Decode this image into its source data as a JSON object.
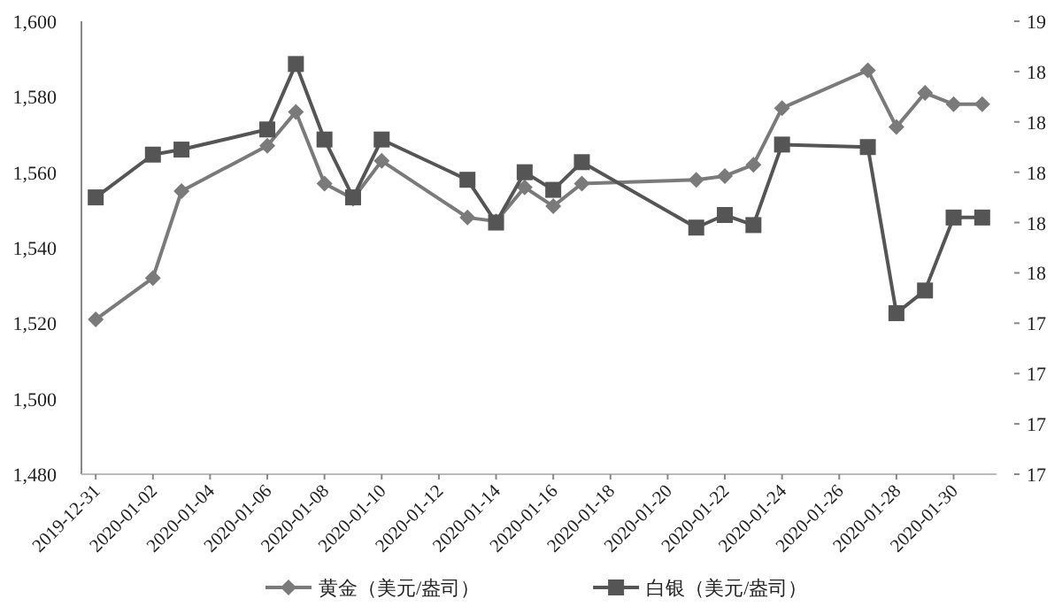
{
  "chart_data": {
    "type": "line",
    "legend": "bottom",
    "line_style": "solid",
    "x": [
      "2019-12-31",
      "2020-01-02",
      "2020-01-03",
      "2020-01-06",
      "2020-01-07",
      "2020-01-08",
      "2020-01-09",
      "2020-01-10",
      "2020-01-13",
      "2020-01-14",
      "2020-01-15",
      "2020-01-16",
      "2020-01-17",
      "2020-01-21",
      "2020-01-22",
      "2020-01-23",
      "2020-01-24",
      "2020-01-27",
      "2020-01-28",
      "2020-01-29",
      "2020-01-30",
      "2020-01-31"
    ],
    "xlim": [
      "2019-12-30T12:00",
      "2020-01-31T12:00"
    ],
    "xticks": [
      "2019-12-31",
      "2020-01-02",
      "2020-01-04",
      "2020-01-06",
      "2020-01-08",
      "2020-01-10",
      "2020-01-12",
      "2020-01-14",
      "2020-01-16",
      "2020-01-18",
      "2020-01-20",
      "2020-01-22",
      "2020-01-24",
      "2020-01-26",
      "2020-01-28",
      "2020-01-30"
    ],
    "ylim": [
      1480,
      1600
    ],
    "yticks": [
      {
        "value": 1480,
        "label": "1,480"
      },
      {
        "value": 1500,
        "label": "1,500"
      },
      {
        "value": 1520,
        "label": "1,520"
      },
      {
        "value": 1540,
        "label": "1,540"
      },
      {
        "value": 1560,
        "label": "1,560"
      },
      {
        "value": 1580,
        "label": "1,580"
      },
      {
        "value": 1600,
        "label": "1,600"
      }
    ],
    "y2lim": [
      16.8,
      18.6
    ],
    "y2ticks": [
      {
        "value": 16.8,
        "label": "17"
      },
      {
        "value": 17.0,
        "label": "17"
      },
      {
        "value": 17.2,
        "label": "17"
      },
      {
        "value": 17.4,
        "label": "17"
      },
      {
        "value": 17.6,
        "label": "18"
      },
      {
        "value": 17.8,
        "label": "18"
      },
      {
        "value": 18.0,
        "label": "18"
      },
      {
        "value": 18.2,
        "label": "18"
      },
      {
        "value": 18.4,
        "label": "18"
      },
      {
        "value": 18.6,
        "label": "19"
      }
    ],
    "series": [
      {
        "name": "黄金（美元/盎司）",
        "color": "#7a7a7a",
        "marker": "diamond",
        "values": [
          1521,
          1532,
          1555,
          1567,
          1576,
          1557,
          1553,
          1563,
          1548,
          1547,
          1556,
          1551,
          1557,
          1558,
          1559,
          1562,
          1577,
          1587,
          1572,
          1581,
          1578,
          1578
        ]
      },
      {
        "name": "白银（美元/盎司）",
        "color": "#555555",
        "marker": "square",
        "axis": "y2",
        "values": [
          17.9,
          18.07,
          18.09,
          18.17,
          18.43,
          18.13,
          17.9,
          18.13,
          17.97,
          17.8,
          18.0,
          17.93,
          18.04,
          17.78,
          17.83,
          17.79,
          18.11,
          18.1,
          17.44,
          17.53,
          17.82,
          17.82
        ]
      }
    ]
  }
}
